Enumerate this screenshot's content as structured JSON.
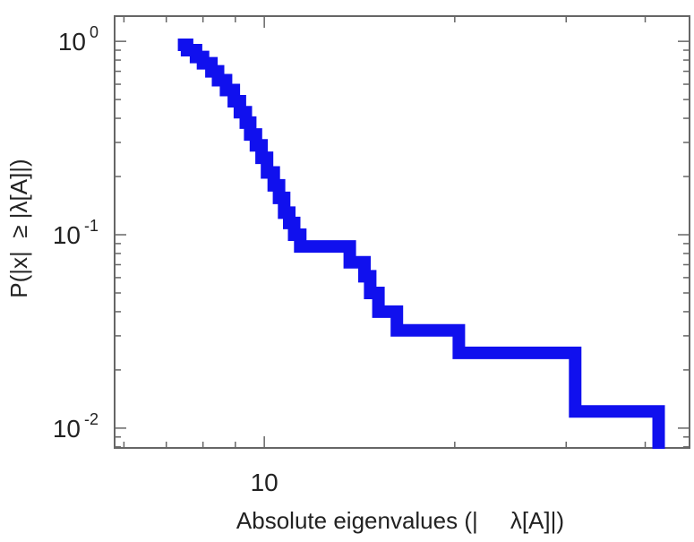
{
  "chart_data": {
    "type": "line",
    "title": "",
    "xlabel": "Absolute eigenvalues (|     λ[A]|)",
    "ylabel": "P(|x|  ≥ |λ[A]|)",
    "x_scale": "log",
    "y_scale": "log",
    "xlim": [
      5.8,
      47
    ],
    "ylim": [
      0.0079,
      1.35
    ],
    "x_ticks": [
      {
        "value": 10,
        "label": "10"
      }
    ],
    "y_ticks": [
      {
        "value": 1,
        "base": "10",
        "exp": "0"
      },
      {
        "value": 0.1,
        "base": "10",
        "exp": "-1"
      },
      {
        "value": 0.01,
        "base": "10",
        "exp": "-2"
      }
    ],
    "grid": false,
    "legend": "none",
    "series": [
      {
        "color": "#1010ee",
        "style": "step",
        "x": [
          7.3,
          7.55,
          7.8,
          8.0,
          8.25,
          8.45,
          8.7,
          8.95,
          9.15,
          9.35,
          9.5,
          9.7,
          9.9,
          10.1,
          10.35,
          10.55,
          10.75,
          10.95,
          11.15,
          11.4,
          13.65,
          14.4,
          14.7,
          15.15,
          16.2,
          20.3,
          31.0,
          42.0
        ],
        "y": [
          0.96,
          0.9,
          0.83,
          0.77,
          0.7,
          0.63,
          0.56,
          0.49,
          0.43,
          0.38,
          0.33,
          0.29,
          0.25,
          0.21,
          0.18,
          0.155,
          0.13,
          0.115,
          0.1,
          0.087,
          0.072,
          0.061,
          0.05,
          0.04,
          0.032,
          0.0245,
          0.0122,
          0.0082
        ]
      }
    ]
  }
}
